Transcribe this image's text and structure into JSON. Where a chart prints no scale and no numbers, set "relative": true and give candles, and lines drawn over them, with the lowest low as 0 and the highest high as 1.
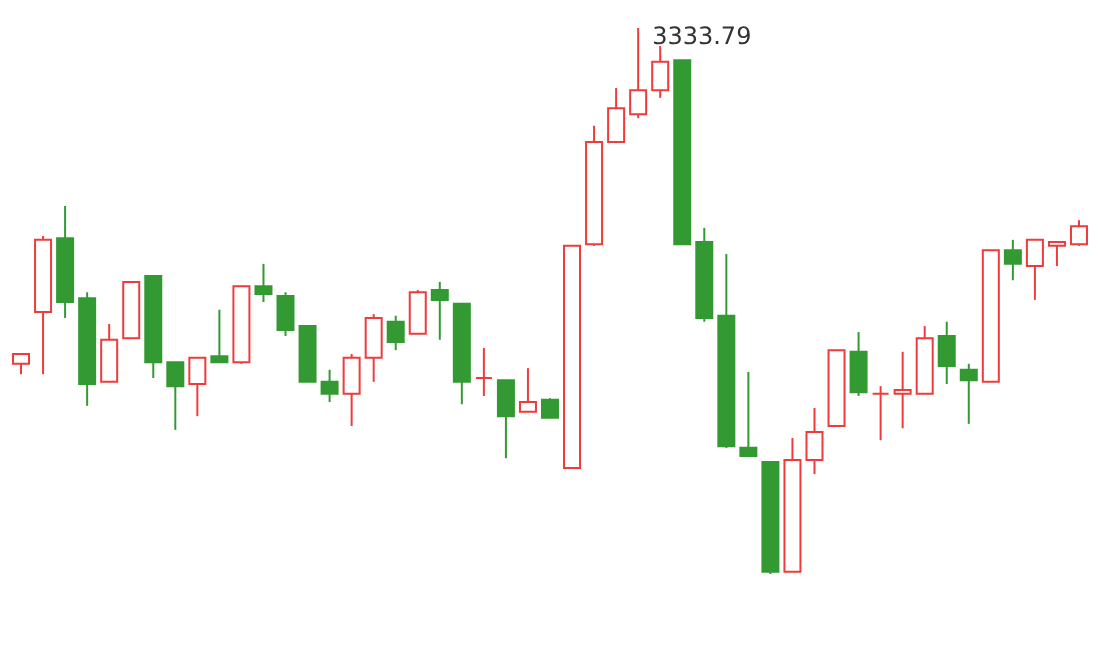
{
  "chart_data": {
    "type": "candlestick",
    "relative": true,
    "colors": [
      "#ee3b3b",
      "#ee3b3b",
      "#339933",
      "#339933",
      "#ee3b3b",
      "#ee3b3b",
      "#339933",
      "#339933",
      "#ee3b3b",
      "#339933",
      "#ee3b3b",
      "#339933",
      "#339933",
      "#339933",
      "#339933",
      "#ee3b3b",
      "#ee3b3b",
      "#339933",
      "#ee3b3b",
      "#339933",
      "#339933",
      "#ee3b3b",
      "#339933",
      "#ee3b3b",
      "#339933",
      "#ee3b3b",
      "#ee3b3b",
      "#ee3b3b",
      "#ee3b3b",
      "#ee3b3b",
      "#339933",
      "#339933",
      "#339933",
      "#339933",
      "#339933",
      "#ee3b3b",
      "#ee3b3b",
      "#ee3b3b",
      "#339933",
      "#ee3b3b",
      "#ee3b3b",
      "#ee3b3b",
      "#339933",
      "#339933",
      "#ee3b3b",
      "#339933",
      "#ee3b3b",
      "#ee3b3b",
      "#ee3b3b"
    ],
    "categories": [
      null,
      null,
      null,
      null,
      null,
      null,
      null,
      null,
      null,
      null,
      null,
      null,
      null,
      null,
      null,
      null,
      null,
      null,
      null,
      null,
      null,
      null,
      null,
      null,
      null,
      null,
      null,
      null,
      null,
      null,
      null,
      null,
      null,
      null,
      null,
      null,
      null,
      null,
      null,
      null,
      null,
      null,
      null,
      null,
      null,
      null,
      null,
      null,
      null
    ],
    "ohlc": [
      [
        0.385,
        0.403,
        0.366,
        0.403
      ],
      [
        0.48,
        0.619,
        0.366,
        0.612
      ],
      [
        0.615,
        0.674,
        0.469,
        0.498
      ],
      [
        0.505,
        0.516,
        0.308,
        0.348
      ],
      [
        0.352,
        0.458,
        0.352,
        0.429
      ],
      [
        0.432,
        0.535,
        0.432,
        0.535
      ],
      [
        0.546,
        0.546,
        0.359,
        0.388
      ],
      [
        0.388,
        0.388,
        0.264,
        0.344
      ],
      [
        0.348,
        0.396,
        0.289,
        0.396
      ],
      [
        0.399,
        0.484,
        0.388,
        0.388
      ],
      [
        0.388,
        0.527,
        0.385,
        0.527
      ],
      [
        0.527,
        0.568,
        0.498,
        0.513
      ],
      [
        0.509,
        0.516,
        0.436,
        0.447
      ],
      [
        0.454,
        0.454,
        0.352,
        0.352
      ],
      [
        0.352,
        0.374,
        0.315,
        0.33
      ],
      [
        0.33,
        0.403,
        0.271,
        0.396
      ],
      [
        0.396,
        0.476,
        0.352,
        0.469
      ],
      [
        0.462,
        0.473,
        0.41,
        0.425
      ],
      [
        0.44,
        0.52,
        0.44,
        0.516
      ],
      [
        0.52,
        0.535,
        0.429,
        0.502
      ],
      [
        0.495,
        0.495,
        0.311,
        0.352
      ],
      [
        0.359,
        0.414,
        0.326,
        0.359
      ],
      [
        0.355,
        0.355,
        0.212,
        0.289
      ],
      [
        0.297,
        0.377,
        0.297,
        0.315
      ],
      [
        0.319,
        0.322,
        0.286,
        0.286
      ],
      [
        0.194,
        0.601,
        0.194,
        0.601
      ],
      [
        0.604,
        0.821,
        0.601,
        0.791
      ],
      [
        0.791,
        0.89,
        0.791,
        0.853
      ],
      [
        0.842,
        1,
        0.835,
        0.886
      ],
      [
        0.886,
        0.967,
        0.872,
        0.938
      ],
      [
        0.941,
        0.941,
        0.604,
        0.604
      ],
      [
        0.608,
        0.634,
        0.462,
        0.469
      ],
      [
        0.473,
        0.586,
        0.231,
        0.234
      ],
      [
        0.231,
        0.37,
        0.216,
        0.216
      ],
      [
        0.205,
        0.205,
        0,
        0.004
      ],
      [
        0.004,
        0.249,
        0.004,
        0.209
      ],
      [
        0.209,
        0.304,
        0.183,
        0.26
      ],
      [
        0.271,
        0.41,
        0.271,
        0.41
      ],
      [
        0.407,
        0.443,
        0.326,
        0.333
      ],
      [
        0.33,
        0.344,
        0.245,
        0.33
      ],
      [
        0.33,
        0.407,
        0.267,
        0.337
      ],
      [
        0.33,
        0.454,
        0.33,
        0.432
      ],
      [
        0.436,
        0.462,
        0.348,
        0.381
      ],
      [
        0.374,
        0.385,
        0.275,
        0.355
      ],
      [
        0.352,
        0.593,
        0.352,
        0.593
      ],
      [
        0.593,
        0.612,
        0.538,
        0.568
      ],
      [
        0.564,
        0.612,
        0.502,
        0.612
      ],
      [
        0.601,
        0.608,
        0.564,
        0.608
      ],
      [
        0.604,
        0.648,
        0.601,
        0.637
      ]
    ],
    "annotations": [
      "3333.79"
    ]
  }
}
